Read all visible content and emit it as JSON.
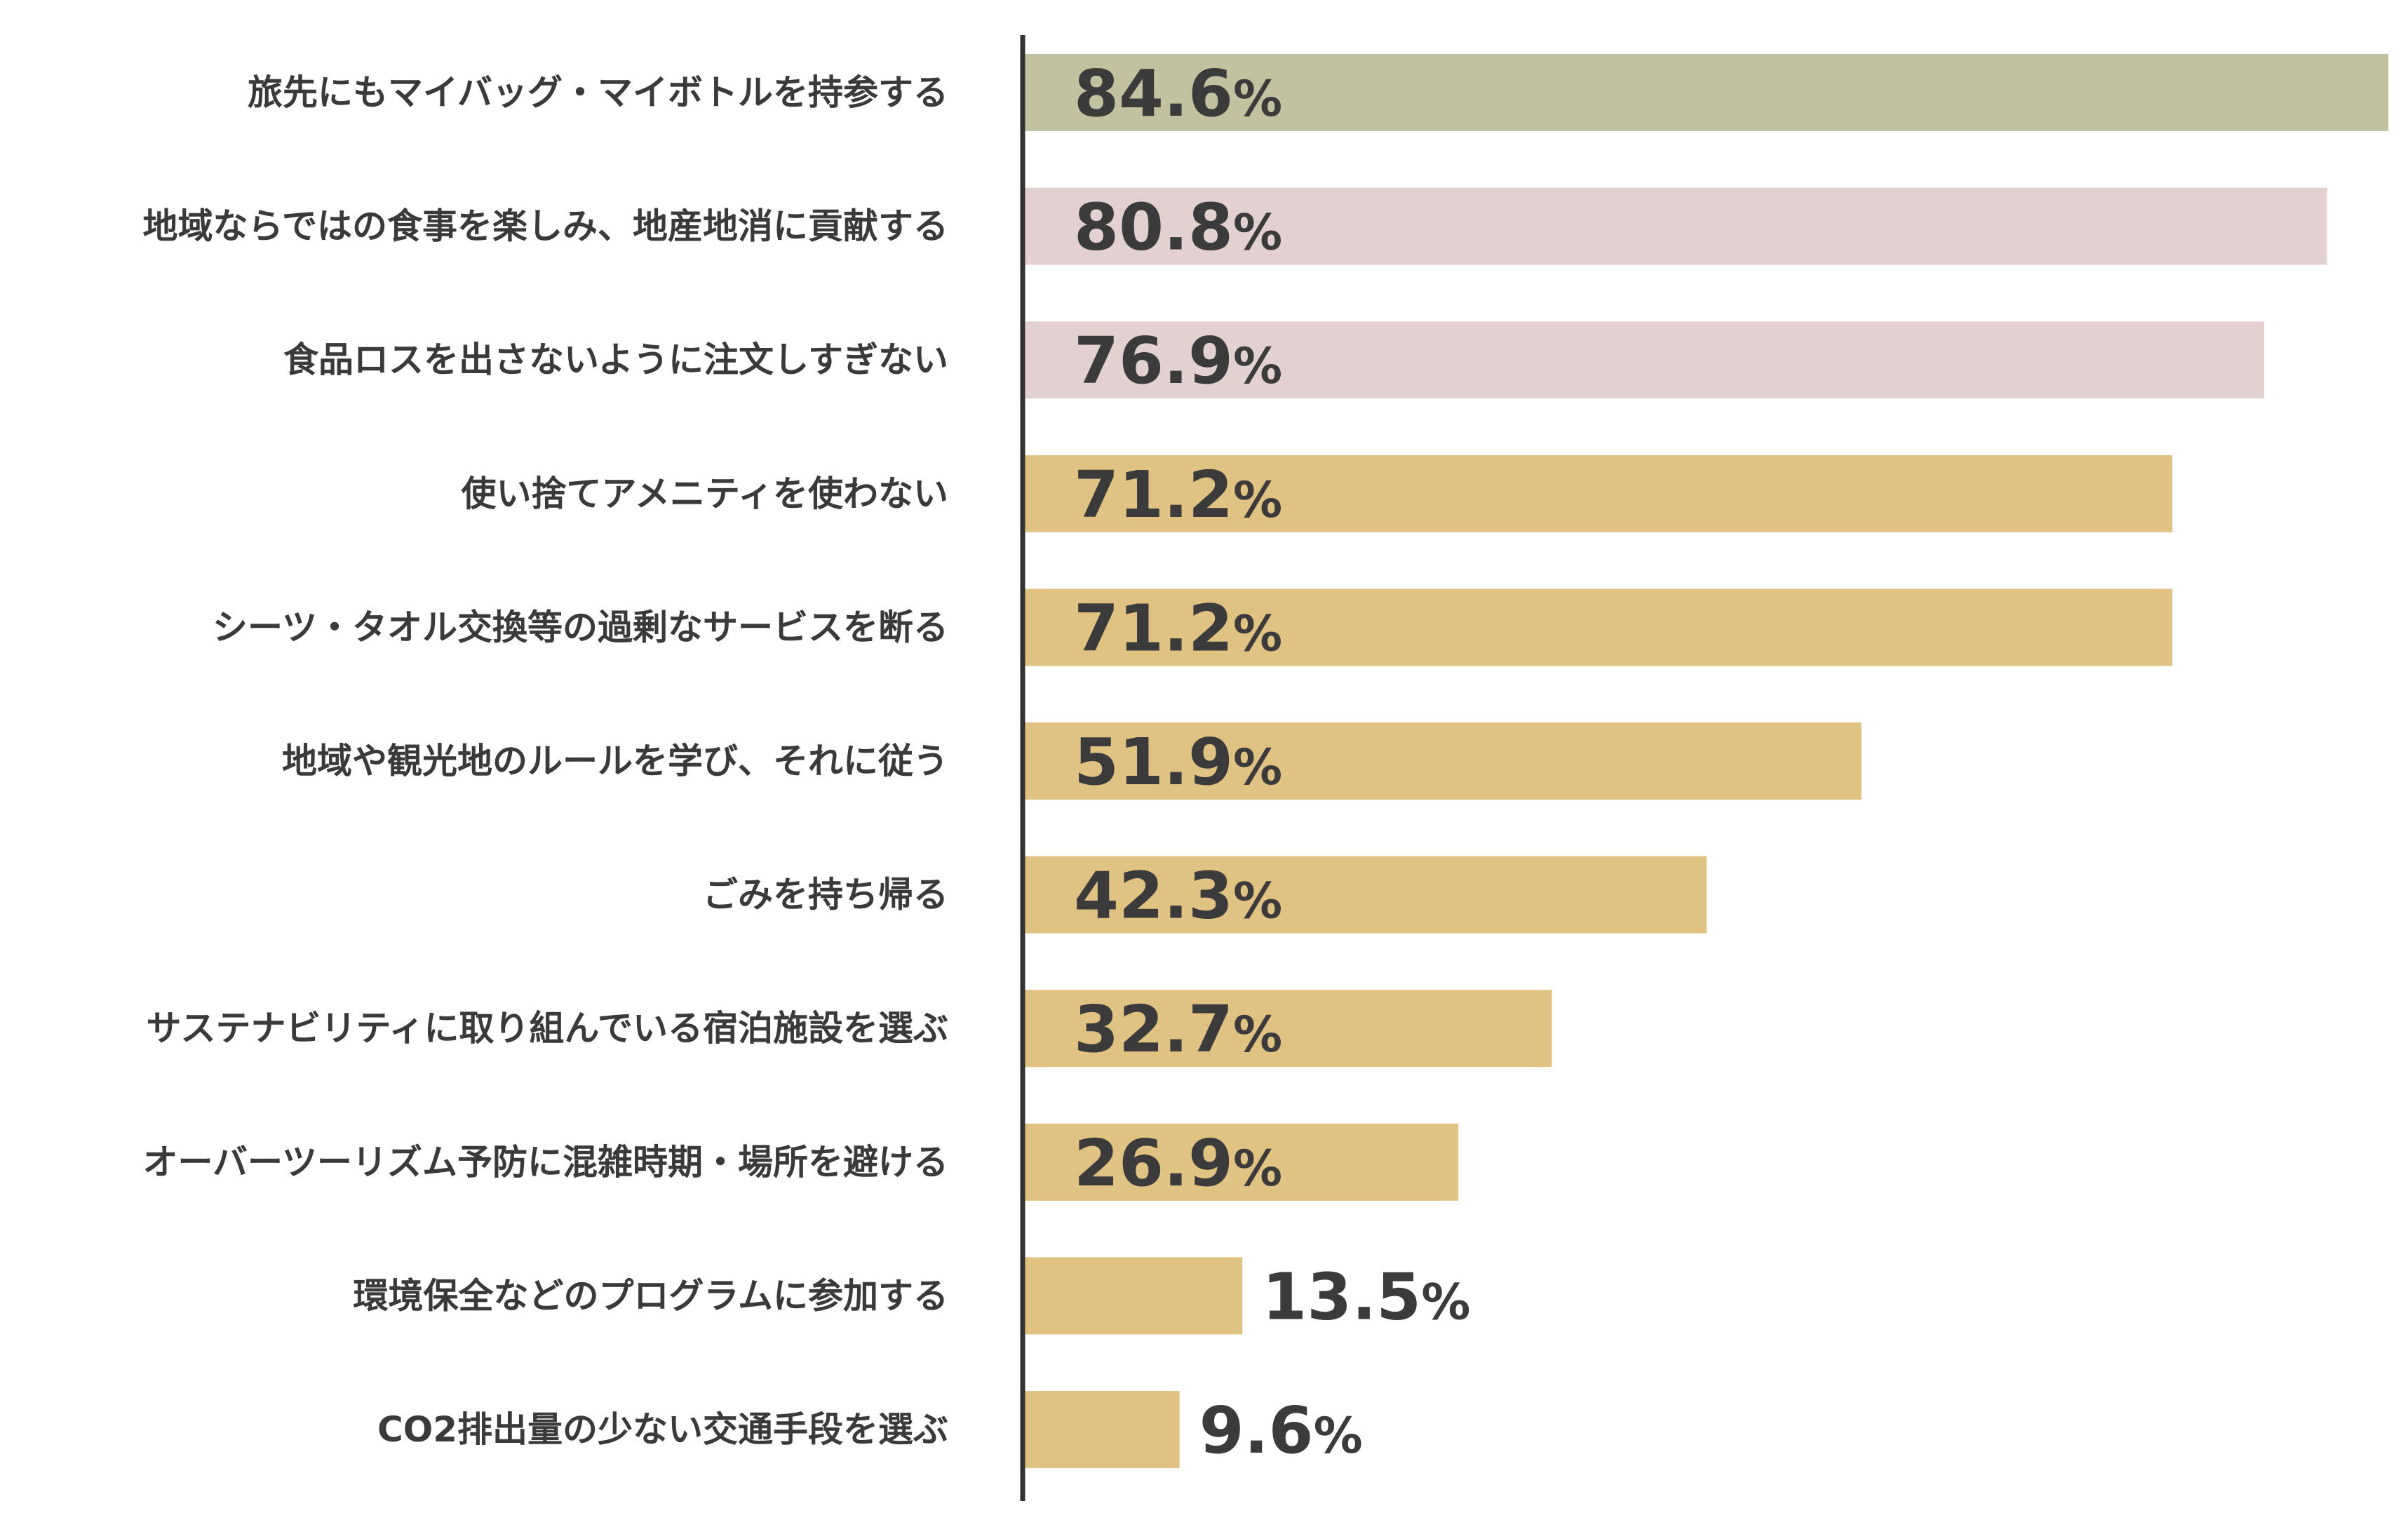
{
  "chart_data": {
    "type": "bar",
    "orientation": "horizontal",
    "value_suffix": "%",
    "xlim": [
      0,
      84.6
    ],
    "grid": false,
    "title": "",
    "xlabel": "",
    "ylabel": "",
    "categories": [
      "旅先にもマイバッグ・マイボトルを持参する",
      "地域ならではの食事を楽しみ、地産地消に貢献する",
      "食品ロスを出さないように注文しすぎない",
      "使い捨てアメニティを使わない",
      "シーツ・タオル交換等の過剰なサービスを断る",
      "地域や観光地のルールを学び、それに従う",
      "ごみを持ち帰る",
      "サステナビリティに取り組んでいる宿泊施設を選ぶ",
      "オーバーツーリズム予防に混雑時期・場所を避ける",
      "環境保全などのプログラムに参加する",
      "CO2排出量の少ない交通手段を選ぶ"
    ],
    "values": [
      84.6,
      80.8,
      76.9,
      71.2,
      71.2,
      51.9,
      42.3,
      32.7,
      26.9,
      13.5,
      9.6
    ],
    "value_labels": [
      "84.6",
      "80.8",
      "76.9",
      "71.2",
      "71.2",
      "51.9",
      "42.3",
      "32.7",
      "26.9",
      "13.5",
      "9.6"
    ],
    "bar_colors": [
      "#c2c1a0",
      "#e3d1d1",
      "#e3d1d1",
      "#e0c283",
      "#e0c283",
      "#e0c283",
      "#e0c283",
      "#e0c283",
      "#e0c283",
      "#e0c283",
      "#e0c283"
    ],
    "axis_color": "#333333",
    "text_color": "#3a3a3a"
  }
}
